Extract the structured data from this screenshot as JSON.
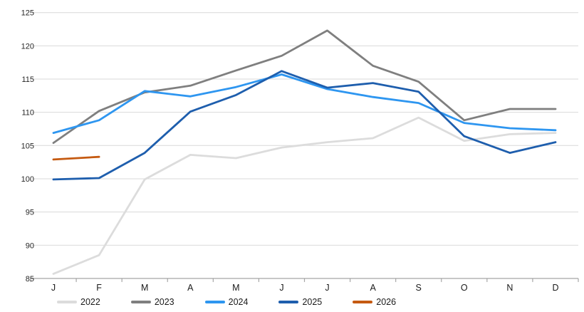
{
  "chart_data": {
    "type": "line",
    "title": "",
    "xlabel": "",
    "ylabel": "",
    "categories": [
      "J",
      "F",
      "M",
      "A",
      "M",
      "J",
      "J",
      "A",
      "S",
      "O",
      "N",
      "D"
    ],
    "series": [
      {
        "name": "2022",
        "color": "#DCDCDC",
        "values": [
          85.7,
          88.5,
          99.9,
          103.6,
          103.1,
          104.7,
          105.5,
          106.1,
          109.2,
          105.7,
          106.7,
          106.9
        ]
      },
      {
        "name": "2023",
        "color": "#7F7F7F",
        "values": [
          105.4,
          110.2,
          113.0,
          114.0,
          116.3,
          118.5,
          122.3,
          117.0,
          114.6,
          108.8,
          110.5,
          110.5
        ]
      },
      {
        "name": "2024",
        "color": "#2E96F0",
        "values": [
          106.9,
          108.8,
          113.2,
          112.4,
          113.8,
          115.7,
          113.5,
          112.3,
          111.4,
          108.4,
          107.6,
          107.3
        ]
      },
      {
        "name": "2025",
        "color": "#1E5EAD",
        "values": [
          99.9,
          100.1,
          103.9,
          110.1,
          112.6,
          116.2,
          113.7,
          114.4,
          113.1,
          106.4,
          103.9,
          105.5
        ]
      },
      {
        "name": "2026",
        "color": "#C55A11",
        "values": [
          102.9,
          103.3,
          null,
          null,
          null,
          null,
          null,
          null,
          null,
          null,
          null,
          null
        ]
      }
    ],
    "y_axis": {
      "min": 85,
      "max": 125,
      "step": 5,
      "ticks": [
        125,
        120,
        115,
        110,
        105,
        100,
        95,
        90,
        85
      ]
    },
    "grid": true,
    "legend_position": "bottom",
    "legend_entries": [
      "2022",
      "2023",
      "2024",
      "2025",
      "2026"
    ]
  },
  "colors": {
    "background": "#ffffff",
    "gridline": "#D9D9D9",
    "axis_line": "#A6A6A6",
    "tick_label": "#262626"
  }
}
